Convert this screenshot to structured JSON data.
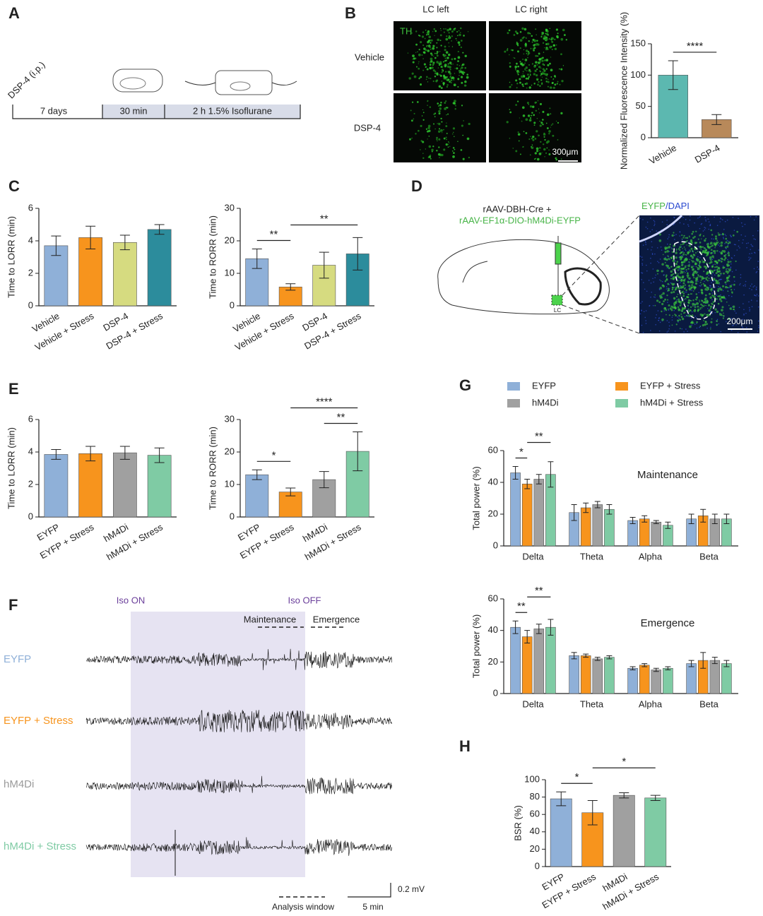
{
  "panels": {
    "A": "A",
    "B": "B",
    "C": "C",
    "D": "D",
    "E": "E",
    "F": "F",
    "G": "G",
    "H": "H"
  },
  "panel_a": {
    "injection": "DSP-4 (i.p.)",
    "phase1": "7 days",
    "phase2": "30 min",
    "phase3": "2 h 1.5% Isoflurane"
  },
  "panel_b": {
    "col1": "LC left",
    "col2": "LC right",
    "stain": "TH",
    "row1": "Vehicle",
    "row2": "DSP-4",
    "scale": "300μm"
  },
  "panel_d": {
    "virus1": "rAAV-DBH-Cre +",
    "virus2": "rAAV-EF1α-DIO-hM4Di-EYFP",
    "stain1": "EYFP",
    "stain2": "/DAPI",
    "region": "LC",
    "scale": "200μm"
  },
  "panel_f": {
    "iso_on": "Iso ON",
    "iso_off": "Iso OFF",
    "window1": "Maintenance",
    "window2": "Emergence",
    "traces": [
      "EYFP",
      "EYFP + Stress",
      "hM4Di",
      "hM4Di + Stress"
    ],
    "scale_v": "0.2 mV",
    "analysis": "Analysis window",
    "scale_t": "5 min"
  },
  "chart_data": [
    {
      "type": "bar",
      "ylabel": "Normalized Fluorescence Intensity (%)",
      "categories": [
        "Vehicle",
        "DSP-4"
      ],
      "values": [
        100,
        29
      ],
      "errors": [
        23,
        8
      ],
      "colors": [
        "#5cb8b0",
        "#b8895a"
      ],
      "ylim": [
        0,
        150
      ],
      "yticks": [
        0,
        50,
        100,
        150
      ],
      "significance": [
        {
          "label": "****",
          "bars": [
            0,
            1
          ]
        }
      ]
    },
    {
      "type": "bar",
      "ylabel": "Time to LORR (min)",
      "categories": [
        "Vehicle",
        "Vehicle + Stress",
        "DSP-4",
        "DSP-4 + Stress"
      ],
      "values": [
        3.7,
        4.2,
        3.9,
        4.7
      ],
      "errors": [
        0.6,
        0.7,
        0.45,
        0.3
      ],
      "colors": [
        "#8fb0d8",
        "#f7941d",
        "#d6db80",
        "#2c8c9c"
      ],
      "ylim": [
        0,
        6
      ],
      "yticks": [
        0,
        2,
        4,
        6
      ]
    },
    {
      "type": "bar",
      "ylabel": "Time to RORR (min)",
      "categories": [
        "Vehicle",
        "Vehicle + Stress",
        "DSP-4",
        "DSP-4 + Stress"
      ],
      "values": [
        14.5,
        5.8,
        12.5,
        16
      ],
      "errors": [
        3,
        1,
        4,
        5
      ],
      "colors": [
        "#8fb0d8",
        "#f7941d",
        "#d6db80",
        "#2c8c9c"
      ],
      "ylim": [
        0,
        30
      ],
      "yticks": [
        0,
        10,
        20,
        30
      ],
      "significance": [
        {
          "label": "**",
          "bars": [
            0,
            1
          ]
        },
        {
          "label": "**",
          "bars": [
            1,
            3
          ]
        }
      ]
    },
    {
      "type": "bar",
      "ylabel": "Time to LORR (min)",
      "categories": [
        "EYFP",
        "EYFP + Stress",
        "hM4Di",
        "hM4Di + Stress"
      ],
      "values": [
        3.85,
        3.9,
        3.95,
        3.8
      ],
      "errors": [
        0.3,
        0.45,
        0.4,
        0.45
      ],
      "colors": [
        "#8fb0d8",
        "#f7941d",
        "#a0a0a0",
        "#7fcba4"
      ],
      "ylim": [
        0,
        6
      ],
      "yticks": [
        0,
        2,
        4,
        6
      ]
    },
    {
      "type": "bar",
      "ylabel": "Time to RORR (min)",
      "categories": [
        "EYFP",
        "EYFP + Stress",
        "hM4Di",
        "hM4Di + Stress"
      ],
      "values": [
        13,
        7.7,
        11.5,
        20.2
      ],
      "errors": [
        1.5,
        1.2,
        2.5,
        6
      ],
      "colors": [
        "#8fb0d8",
        "#f7941d",
        "#a0a0a0",
        "#7fcba4"
      ],
      "ylim": [
        0,
        30
      ],
      "yticks": [
        0,
        10,
        20,
        30
      ],
      "significance": [
        {
          "label": "*",
          "bars": [
            0,
            1
          ]
        },
        {
          "label": "**",
          "bars": [
            2,
            3
          ]
        },
        {
          "label": "****",
          "bars": [
            1,
            3
          ]
        }
      ]
    },
    {
      "type": "grouped_bar",
      "ylabel": "Total power (%)",
      "annotation": "Maintenance",
      "categories": [
        "Delta",
        "Theta",
        "Alpha",
        "Beta"
      ],
      "series": [
        {
          "name": "EYFP",
          "color": "#8fb0d8",
          "values": [
            46,
            21,
            16,
            17
          ],
          "errors": [
            4,
            5,
            2,
            3
          ]
        },
        {
          "name": "EYFP + Stress",
          "color": "#f7941d",
          "values": [
            39,
            24,
            17,
            19
          ],
          "errors": [
            3,
            3,
            2,
            4
          ]
        },
        {
          "name": "hM4Di",
          "color": "#a0a0a0",
          "values": [
            42,
            26,
            15,
            17
          ],
          "errors": [
            3,
            2,
            1,
            3
          ]
        },
        {
          "name": "hM4Di + Stress",
          "color": "#7fcba4",
          "values": [
            45,
            23,
            13,
            17
          ],
          "errors": [
            8,
            3,
            2,
            3
          ]
        }
      ],
      "ylim": [
        0,
        60
      ],
      "yticks": [
        0,
        20,
        40,
        60
      ],
      "significance": [
        {
          "label": "*",
          "group": 0,
          "bars": [
            0,
            1
          ]
        },
        {
          "label": "**",
          "group": 0,
          "bars": [
            1,
            3
          ]
        }
      ]
    },
    {
      "type": "grouped_bar",
      "ylabel": "Total power (%)",
      "annotation": "Emergence",
      "categories": [
        "Delta",
        "Theta",
        "Alpha",
        "Beta"
      ],
      "series": [
        {
          "color": "#8fb0d8",
          "values": [
            42,
            24,
            16,
            19
          ],
          "errors": [
            4,
            2,
            1,
            2
          ]
        },
        {
          "color": "#f7941d",
          "values": [
            36,
            24,
            18,
            21
          ],
          "errors": [
            4,
            1,
            1,
            5
          ]
        },
        {
          "color": "#a0a0a0",
          "values": [
            41,
            22,
            15,
            21
          ],
          "errors": [
            3,
            1,
            1,
            2
          ]
        },
        {
          "color": "#7fcba4",
          "values": [
            42,
            23,
            16,
            19
          ],
          "errors": [
            5,
            1,
            1,
            2
          ]
        }
      ],
      "ylim": [
        0,
        60
      ],
      "yticks": [
        0,
        20,
        40,
        60
      ],
      "significance": [
        {
          "label": "**",
          "group": 0,
          "bars": [
            0,
            1
          ]
        },
        {
          "label": "**",
          "group": 0,
          "bars": [
            1,
            3
          ]
        }
      ]
    },
    {
      "type": "bar",
      "ylabel": "BSR (%)",
      "categories": [
        "EYFP",
        "EYFP + Stress",
        "hM4Di",
        "hM4Di + Stress"
      ],
      "values": [
        78,
        62,
        82,
        79
      ],
      "errors": [
        8,
        14,
        3,
        3
      ],
      "colors": [
        "#8fb0d8",
        "#f7941d",
        "#a0a0a0",
        "#7fcba4"
      ],
      "ylim": [
        0,
        100
      ],
      "yticks": [
        0,
        20,
        40,
        60,
        80,
        100
      ],
      "significance": [
        {
          "label": "*",
          "bars": [
            0,
            1
          ]
        },
        {
          "label": "*",
          "bars": [
            1,
            3
          ]
        }
      ]
    }
  ]
}
